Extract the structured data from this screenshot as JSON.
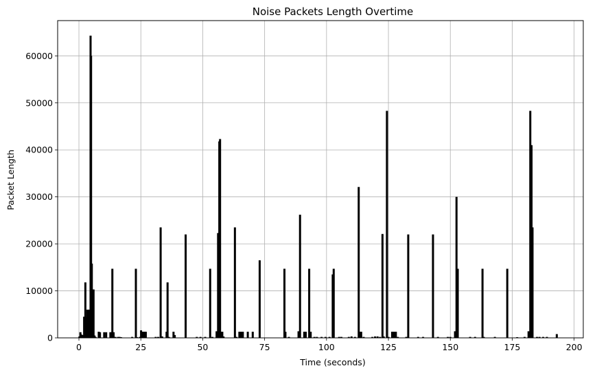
{
  "chart_data": {
    "type": "bar",
    "title": "Noise Packets Length Overtime",
    "xlabel": "Time (seconds)",
    "ylabel": "Packet Length",
    "xlim": [
      -8.6,
      203.7
    ],
    "ylim": [
      0,
      67500
    ],
    "grid": true,
    "bar_color": "#000000",
    "x_ticks": [
      0,
      25,
      50,
      75,
      100,
      125,
      150,
      175,
      200
    ],
    "y_ticks": [
      0,
      10000,
      20000,
      30000,
      40000,
      50000,
      60000
    ],
    "series": [
      {
        "x": [
          0.2,
          0.6,
          1.0,
          1.5,
          2.1,
          2.6,
          3.0,
          3.4,
          3.9,
          4.3,
          4.7,
          4.9,
          5.2,
          5.5,
          5.9,
          6.3,
          6.7,
          8.0,
          8.5,
          10.2,
          11.0,
          12.7,
          13.2,
          13.5,
          14.0,
          14.7,
          15.8,
          16.4,
          17.0,
          21.5,
          23.0,
          23.4,
          24.6,
          25.1,
          25.6,
          26.0,
          26.5,
          27.0,
          31.0,
          32.0,
          33.0,
          33.6,
          35.4,
          35.8,
          36.3,
          38.2,
          38.7,
          43.1,
          47.6,
          49.1,
          51.0,
          53.0,
          53.9,
          55.6,
          56.2,
          56.7,
          57.0,
          57.4,
          57.9,
          58.4,
          63.0,
          63.6,
          64.8,
          65.5,
          66.2,
          68.2,
          70.2,
          73.0,
          83.0,
          83.4,
          84.8,
          88.7,
          89.3,
          91.0,
          91.6,
          93.0,
          93.6,
          95.1,
          96.1,
          98.0,
          99.6,
          101.2,
          102.5,
          102.9,
          105.1,
          106.0,
          109.0,
          110.1,
          111.5,
          113.0,
          113.5,
          114.0,
          115.0,
          118.5,
          119.6,
          120.6,
          121.6,
          122.6,
          123.1,
          124.4,
          125.0,
          126.5,
          127.2,
          128.0,
          128.8,
          132.2,
          133.0,
          137.0,
          139.0,
          143.0,
          145.0,
          149.0,
          150.0,
          151.9,
          152.5,
          153.0,
          158.0,
          160.0,
          163.0,
          163.5,
          168.0,
          173.0,
          177.0,
          180.0,
          181.6,
          182.3,
          182.8,
          183.2,
          185.0,
          186.0,
          187.5,
          189.0,
          193.0
        ],
        "values": [
          300,
          1200,
          700,
          600,
          4500,
          11800,
          4400,
          6000,
          6000,
          6000,
          64300,
          60000,
          15800,
          900,
          10300,
          500,
          200,
          1300,
          1200,
          1200,
          1200,
          1200,
          1200,
          14700,
          1200,
          200,
          200,
          200,
          100,
          200,
          14700,
          100,
          200,
          1600,
          1300,
          1300,
          1300,
          1300,
          200,
          200,
          23500,
          300,
          1300,
          11800,
          200,
          1300,
          600,
          22000,
          200,
          200,
          200,
          14700,
          200,
          1400,
          22300,
          41800,
          42300,
          1300,
          1300,
          300,
          23500,
          200,
          1300,
          1300,
          1300,
          1300,
          1300,
          16500,
          14700,
          1300,
          200,
          1400,
          26200,
          1300,
          1300,
          14700,
          1300,
          200,
          200,
          200,
          200,
          200,
          13500,
          14700,
          200,
          200,
          200,
          300,
          200,
          32100,
          1300,
          1300,
          200,
          200,
          300,
          300,
          200,
          22100,
          300,
          48300,
          200,
          1300,
          1300,
          1300,
          200,
          200,
          22000,
          200,
          200,
          22000,
          200,
          200,
          200,
          1400,
          30000,
          14700,
          200,
          200,
          14700,
          200,
          200,
          14700,
          100,
          200,
          1400,
          48300,
          41000,
          23500,
          200,
          200,
          200,
          200,
          800
        ]
      }
    ]
  }
}
